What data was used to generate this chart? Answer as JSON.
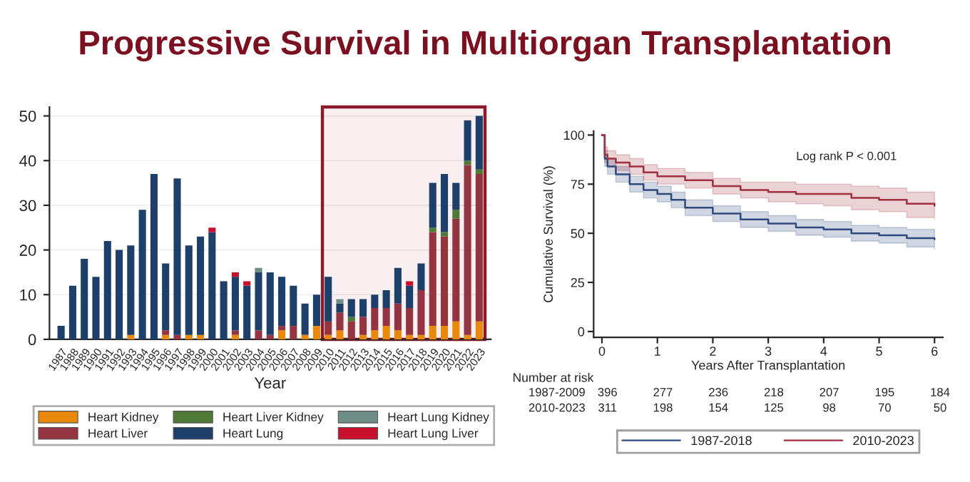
{
  "chart_data": [
    {
      "type": "bar",
      "title": "Progressive Survival in Multiorgan Transplantation",
      "xlabel": "Year",
      "stacked": true,
      "grid": "y",
      "legend": "bottom",
      "categories": [
        "1987",
        "1988",
        "1989",
        "1990",
        "1991",
        "1992",
        "1993",
        "1994",
        "1995",
        "1996",
        "1997",
        "1998",
        "1999",
        "2000",
        "2001",
        "2002",
        "2003",
        "2004",
        "2005",
        "2006",
        "2007",
        "2008",
        "2009",
        "2010",
        "2011",
        "2012",
        "2013",
        "2014",
        "2015",
        "2016",
        "2017",
        "2018",
        "2019",
        "2020",
        "2021",
        "2022",
        "2023"
      ],
      "series": [
        {
          "name": "Heart Kidney",
          "color": "#e8890c",
          "values": [
            0,
            0,
            0,
            0,
            0,
            0,
            1,
            0,
            0,
            1,
            0,
            1,
            1,
            0,
            0,
            1,
            0,
            0,
            0,
            2,
            0,
            1,
            3,
            1,
            2,
            0,
            1,
            2,
            3,
            2,
            1,
            1,
            3,
            3,
            4,
            1,
            4
          ]
        },
        {
          "name": "Heart Liver",
          "color": "#933440",
          "values": [
            0,
            0,
            0,
            0,
            0,
            0,
            0,
            0,
            0,
            1,
            1,
            0,
            0,
            0,
            0,
            1,
            0,
            2,
            1,
            1,
            3,
            0,
            0,
            3,
            4,
            4,
            4,
            5,
            4,
            6,
            6,
            10,
            21,
            20,
            23,
            38,
            33
          ]
        },
        {
          "name": "Heart Liver Kidney",
          "color": "#4e7a35",
          "values": [
            0,
            0,
            0,
            0,
            0,
            0,
            0,
            0,
            0,
            0,
            0,
            0,
            0,
            0,
            0,
            0,
            0,
            0,
            0,
            0,
            0,
            0,
            0,
            0,
            0,
            1,
            0,
            0,
            0,
            0,
            0,
            0,
            1,
            1,
            2,
            1,
            1
          ]
        },
        {
          "name": "Heart Lung",
          "color": "#1f3f6b",
          "values": [
            3,
            12,
            18,
            14,
            22,
            20,
            20,
            29,
            37,
            15,
            35,
            20,
            22,
            24,
            13,
            12,
            12,
            13,
            14,
            11,
            9,
            7,
            7,
            10,
            2,
            4,
            4,
            3,
            4,
            8,
            5,
            6,
            10,
            13,
            6,
            9,
            12
          ]
        },
        {
          "name": "Heart Lung Kidney",
          "color": "#6f8f86",
          "values": [
            0,
            0,
            0,
            0,
            0,
            0,
            0,
            0,
            0,
            0,
            0,
            0,
            0,
            0,
            0,
            0,
            0,
            1,
            0,
            0,
            0,
            0,
            0,
            0,
            1,
            0,
            0,
            0,
            0,
            0,
            0,
            0,
            0,
            0,
            0,
            0,
            0
          ]
        },
        {
          "name": "Heart Lung Liver",
          "color": "#c8102e",
          "values": [
            0,
            0,
            0,
            0,
            0,
            0,
            0,
            0,
            0,
            0,
            0,
            0,
            0,
            1,
            0,
            1,
            1,
            0,
            0,
            0,
            0,
            0,
            0,
            0,
            0,
            0,
            0,
            0,
            0,
            0,
            1,
            0,
            0,
            0,
            0,
            0,
            0
          ]
        }
      ],
      "ylim": [
        0,
        52
      ],
      "yticks": [
        0,
        10,
        20,
        30,
        40,
        50
      ],
      "bands": [
        {
          "axis": "x",
          "from": "2010",
          "to": "2023",
          "color": "#8b1a2a"
        }
      ]
    },
    {
      "type": "step",
      "xlabel": "Years After Transplantation",
      "ylabel": "Cumulative Survival (%)",
      "legend": "bottom",
      "grid": false,
      "series": [
        {
          "name": "1987-2018",
          "color": "#2e4a7d",
          "x": [
            0,
            0.05,
            0.1,
            0.25,
            0.5,
            0.75,
            1,
            1.25,
            1.5,
            2,
            2.5,
            3,
            3.5,
            4,
            4.5,
            5,
            5.5,
            6
          ],
          "values": [
            100,
            88,
            84,
            80,
            75,
            72,
            70,
            67,
            63,
            60,
            57,
            55,
            53,
            52,
            50,
            49,
            47.5,
            47
          ],
          "lower": [
            100,
            84,
            80,
            76,
            71,
            68,
            66,
            63,
            59,
            56,
            53,
            51,
            49,
            48,
            46,
            45,
            43,
            42
          ],
          "upper": [
            100,
            92,
            88,
            84,
            79,
            76,
            74,
            71,
            67,
            64,
            61,
            59,
            57,
            56,
            54,
            53,
            52,
            52
          ]
        },
        {
          "name": "2010-2023",
          "color": "#a0303f",
          "x": [
            0,
            0.05,
            0.1,
            0.25,
            0.5,
            0.75,
            1,
            1.5,
            2,
            2.5,
            3,
            3.5,
            4,
            4.5,
            5,
            5.5,
            6
          ],
          "values": [
            100,
            90,
            88,
            86,
            84,
            81,
            79,
            77,
            74,
            72,
            71,
            70,
            70,
            68,
            67,
            65,
            64
          ],
          "lower": [
            100,
            86,
            84,
            82,
            80,
            77,
            75,
            73,
            70,
            68,
            66,
            65,
            64,
            62,
            61,
            58,
            57
          ],
          "upper": [
            100,
            94,
            92,
            90,
            88,
            85,
            83,
            81,
            78,
            76,
            76,
            75,
            75,
            74,
            73,
            71,
            71
          ]
        }
      ],
      "xlim": [
        -0.15,
        6.15
      ],
      "xticks": [
        0,
        1,
        2,
        3,
        4,
        5,
        6
      ],
      "ylim": [
        -3,
        102
      ],
      "yticks": [
        0,
        25,
        50,
        75,
        100
      ],
      "annotations": [
        "Log rank P < 0.001",
        "Number at risk",
        "1987-2009",
        "396",
        "277",
        "236",
        "218",
        "207",
        "195",
        "184",
        "2010-2023",
        "311",
        "198",
        "154",
        "125",
        "98",
        "70",
        "50"
      ]
    }
  ]
}
